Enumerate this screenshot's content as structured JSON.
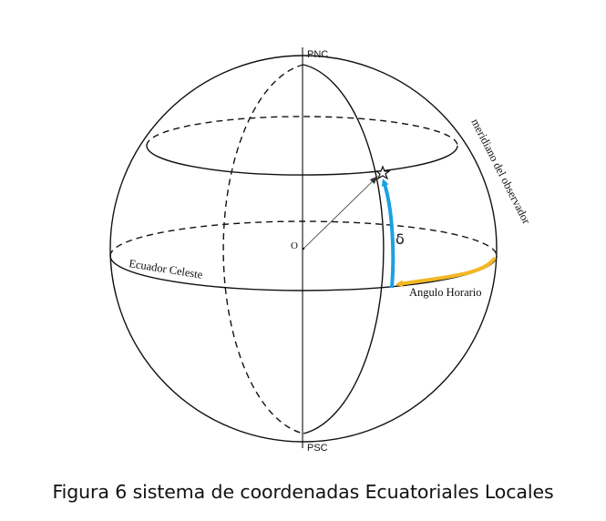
{
  "labels": {
    "north_pole": "PNC",
    "south_pole": "PSC",
    "origin": "O",
    "equator": "Ecuador Celeste",
    "meridian": "meridiano del observador",
    "hour_angle": "Angulo Horario",
    "declination": "δ"
  },
  "caption": "Figura 6 sistema de coordenadas Ecuatoriales Locales",
  "colors": {
    "declination_arc": "#1ba1e2",
    "hour_angle_arc": "#f2b824",
    "lines": "#111111"
  }
}
